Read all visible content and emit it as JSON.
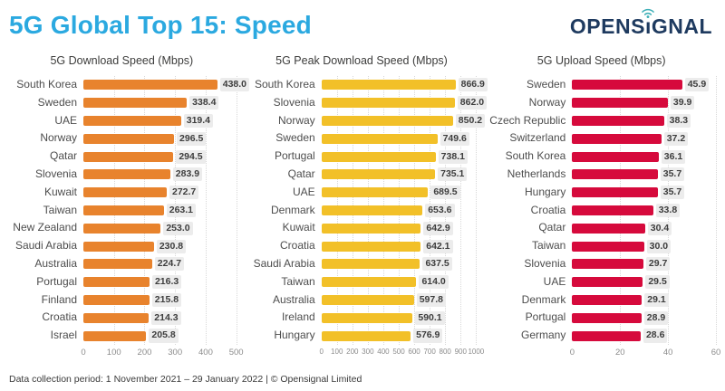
{
  "header": {
    "title": "5G Global Top 15: Speed",
    "logo": {
      "text": "OPENSIGNAL",
      "text_before_i": "OPENS",
      "i_char": "ı",
      "text_after_i": "GNAL",
      "text_color": "#1E3A5F",
      "wifi_icon_color": "#3FB0B8"
    }
  },
  "footer": {
    "text": "Data collection period: 1 November 2021 – 29 January 2022 |  © Opensignal Limited"
  },
  "chart_data": [
    {
      "type": "bar",
      "orientation": "horizontal",
      "title": "5G Download Speed (Mbps)",
      "bar_color": "#E8832D",
      "xlim": [
        0,
        500
      ],
      "xticks": [
        0,
        100,
        200,
        300,
        400,
        500
      ],
      "grid": "dotted-vertical",
      "value_decimals": 1,
      "categories": [
        "South Korea",
        "Sweden",
        "UAE",
        "Norway",
        "Qatar",
        "Slovenia",
        "Kuwait",
        "Taiwan",
        "New Zealand",
        "Saudi Arabia",
        "Australia",
        "Portugal",
        "Finland",
        "Croatia",
        "Israel"
      ],
      "values": [
        438.0,
        338.4,
        319.4,
        296.5,
        294.5,
        283.9,
        272.7,
        263.1,
        253.0,
        230.8,
        224.7,
        216.3,
        215.8,
        214.3,
        205.8
      ]
    },
    {
      "type": "bar",
      "orientation": "horizontal",
      "title": "5G Peak Download Speed (Mbps)",
      "bar_color": "#F2C028",
      "xlim": [
        0,
        1000
      ],
      "xticks": [
        0,
        100,
        200,
        300,
        400,
        500,
        600,
        700,
        800,
        900,
        1000
      ],
      "grid": "dotted-vertical",
      "value_decimals": 1,
      "categories": [
        "South Korea",
        "Slovenia",
        "Norway",
        "Sweden",
        "Portugal",
        "Qatar",
        "UAE",
        "Denmark",
        "Kuwait",
        "Croatia",
        "Saudi Arabia",
        "Taiwan",
        "Australia",
        "Ireland",
        "Hungary"
      ],
      "values": [
        866.9,
        862.0,
        850.2,
        749.6,
        738.1,
        735.1,
        689.5,
        653.6,
        642.9,
        642.1,
        637.5,
        614.0,
        597.8,
        590.1,
        576.9
      ]
    },
    {
      "type": "bar",
      "orientation": "horizontal",
      "title": "5G Upload Speed (Mbps)",
      "bar_color": "#D60A3C",
      "xlim": [
        0,
        60
      ],
      "xticks": [
        0,
        20,
        40,
        60
      ],
      "grid": "dotted-vertical",
      "value_decimals": 1,
      "categories": [
        "Sweden",
        "Norway",
        "Czech Republic",
        "Switzerland",
        "South Korea",
        "Netherlands",
        "Hungary",
        "Croatia",
        "Qatar",
        "Taiwan",
        "Slovenia",
        "UAE",
        "Denmark",
        "Portugal",
        "Germany"
      ],
      "values": [
        45.9,
        39.9,
        38.3,
        37.2,
        36.1,
        35.7,
        35.7,
        33.8,
        30.4,
        30.0,
        29.7,
        29.5,
        29.1,
        28.9,
        28.6
      ]
    }
  ]
}
